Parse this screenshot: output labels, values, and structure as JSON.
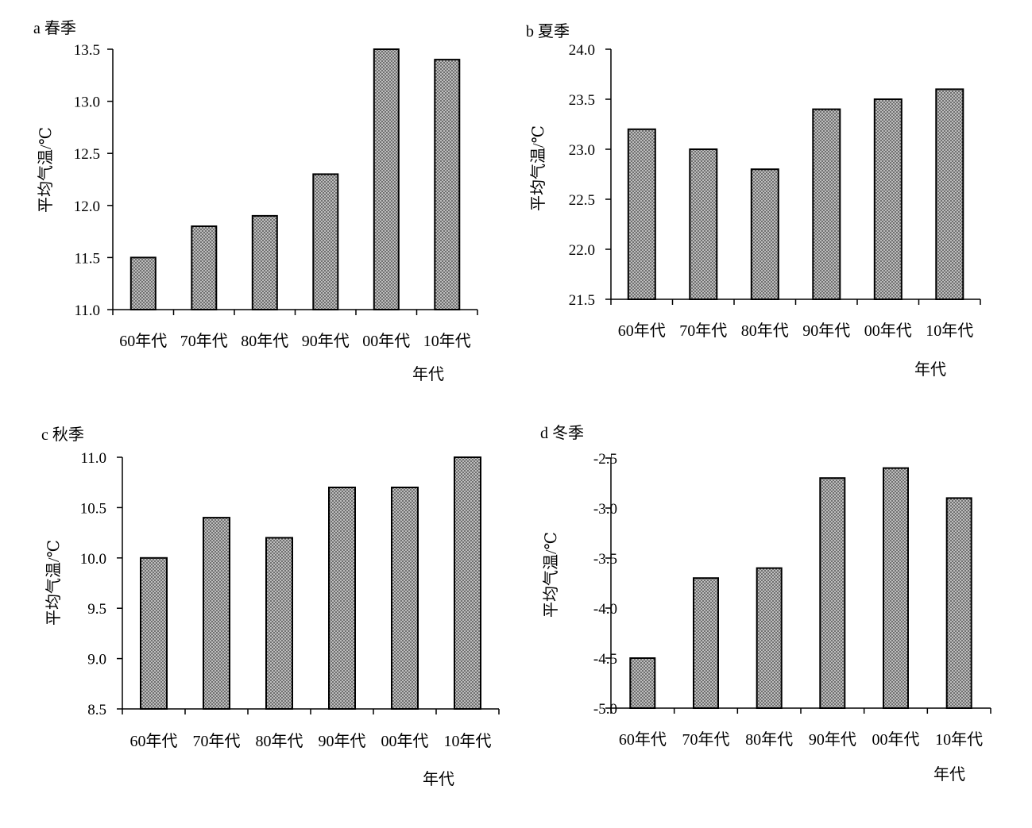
{
  "colors": {
    "bar_fill_base": "#b9b9b9",
    "bar_dot": "#3a3a3a",
    "bar_stroke": "#000000",
    "axis": "#000000"
  },
  "chart_data": [
    {
      "type": "bar",
      "title": "a 春季",
      "categories": [
        "60年代",
        "70年代",
        "80年代",
        "90年代",
        "00年代",
        "10年代"
      ],
      "values": [
        11.5,
        11.8,
        11.9,
        12.3,
        13.5,
        13.4
      ],
      "xlabel": "年代",
      "ylabel": "平均气温/℃",
      "ylim": [
        11.0,
        13.5
      ],
      "yticks": [
        "11.0",
        "11.5",
        "12.0",
        "12.5",
        "13.0",
        "13.5"
      ],
      "grid": false
    },
    {
      "type": "bar",
      "title": "b 夏季",
      "categories": [
        "60年代",
        "70年代",
        "80年代",
        "90年代",
        "00年代",
        "10年代"
      ],
      "values": [
        23.2,
        23.0,
        22.8,
        23.4,
        23.5,
        23.6
      ],
      "xlabel": "年代",
      "ylabel": "平均气温/℃",
      "ylim": [
        21.5,
        24.0
      ],
      "yticks": [
        "21.5",
        "22.0",
        "22.5",
        "23.0",
        "23.5",
        "24.0"
      ],
      "grid": false
    },
    {
      "type": "bar",
      "title": "c 秋季",
      "categories": [
        "60年代",
        "70年代",
        "80年代",
        "90年代",
        "00年代",
        "10年代"
      ],
      "values": [
        10.0,
        10.4,
        10.2,
        10.7,
        10.7,
        11.0
      ],
      "xlabel": "年代",
      "ylabel": "平均气温/℃",
      "ylim": [
        8.5,
        11.0
      ],
      "yticks": [
        "8.5",
        "9.0",
        "9.5",
        "10.0",
        "10.5",
        "11.0"
      ],
      "grid": false
    },
    {
      "type": "bar",
      "title": "d 冬季",
      "categories": [
        "60年代",
        "70年代",
        "80年代",
        "90年代",
        "00年代",
        "10年代"
      ],
      "values": [
        -4.5,
        -3.7,
        -3.6,
        -2.7,
        -2.6,
        -2.9
      ],
      "xlabel": "年代",
      "ylabel": "平均气温/℃",
      "ylim": [
        -5.0,
        -2.5
      ],
      "yticks": [
        "-5.0",
        "-4.5",
        "-4.0",
        "-3.5",
        "-3.0",
        "-2.5"
      ],
      "grid": false
    }
  ]
}
